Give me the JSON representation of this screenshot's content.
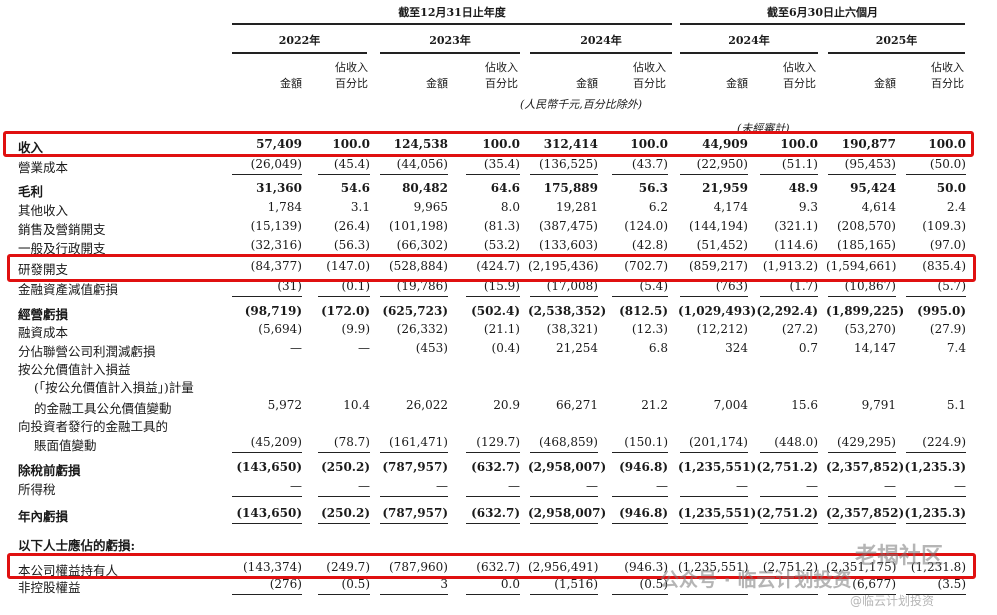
{
  "header": {
    "period_left": "截至12月31日止年度",
    "period_right": "截至6月30日止六個月",
    "years": [
      "2022年",
      "2023年",
      "2024年",
      "2024年",
      "2025年"
    ],
    "amount_label": "金額",
    "pct_label_line1": "佔收入",
    "pct_label_line2": "百分比",
    "unit_note": "(人民幣千元,百分比除外)",
    "unaudited_note": "(未經審計)"
  },
  "section_label": "以下人士應佔的虧損:",
  "rows": [
    {
      "label": "收入",
      "bold": true,
      "vals": [
        "57,409",
        "100.0",
        "124,538",
        "100.0",
        "312,414",
        "100.0",
        "44,909",
        "100.0",
        "190,877",
        "100.0"
      ]
    },
    {
      "label": "營業成本",
      "vals": [
        "(26,049)",
        "(45.4)",
        "(44,056)",
        "(35.4)",
        "(136,525)",
        "(43.7)",
        "(22,950)",
        "(51.1)",
        "(95,453)",
        "(50.0)"
      ]
    },
    {
      "label": "毛利",
      "bold": true,
      "vals": [
        "31,360",
        "54.6",
        "80,482",
        "64.6",
        "175,889",
        "56.3",
        "21,959",
        "48.9",
        "95,424",
        "50.0"
      ]
    },
    {
      "label": "其他收入",
      "vals": [
        "1,784",
        "3.1",
        "9,965",
        "8.0",
        "19,281",
        "6.2",
        "4,174",
        "9.3",
        "4,614",
        "2.4"
      ]
    },
    {
      "label": "銷售及營銷開支",
      "vals": [
        "(15,139)",
        "(26.4)",
        "(101,198)",
        "(81.3)",
        "(387,475)",
        "(124.0)",
        "(144,194)",
        "(321.1)",
        "(208,570)",
        "(109.3)"
      ]
    },
    {
      "label": "一般及行政開支",
      "vals": [
        "(32,316)",
        "(56.3)",
        "(66,302)",
        "(53.2)",
        "(133,603)",
        "(42.8)",
        "(51,452)",
        "(114.6)",
        "(185,165)",
        "(97.0)"
      ]
    },
    {
      "label": "研發開支",
      "vals": [
        "(84,377)",
        "(147.0)",
        "(528,884)",
        "(424.7)",
        "(2,195,436)",
        "(702.7)",
        "(859,217)",
        "(1,913.2)",
        "(1,594,661)",
        "(835.4)"
      ]
    },
    {
      "label": "金融資產減值虧損",
      "vals": [
        "(31)",
        "(0.1)",
        "(19,786)",
        "(15.9)",
        "(17,008)",
        "(5.4)",
        "(763)",
        "(1.7)",
        "(10,867)",
        "(5.7)"
      ]
    },
    {
      "label": "經營虧損",
      "bold": true,
      "vals": [
        "(98,719)",
        "(172.0)",
        "(625,723)",
        "(502.4)",
        "(2,538,352)",
        "(812.5)",
        "(1,029,493)",
        "(2,292.4)",
        "(1,899,225)",
        "(995.0)"
      ]
    },
    {
      "label": "融資成本",
      "vals": [
        "(5,694)",
        "(9.9)",
        "(26,332)",
        "(21.1)",
        "(38,321)",
        "(12.3)",
        "(12,212)",
        "(27.2)",
        "(53,270)",
        "(27.9)"
      ]
    },
    {
      "label": "分佔聯營公司利潤減虧損",
      "vals": [
        "—",
        "—",
        "(453)",
        "(0.4)",
        "21,254",
        "6.8",
        "324",
        "0.7",
        "14,147",
        "7.4"
      ]
    },
    {
      "label": "按公允價值計入損益",
      "vals": [
        "",
        "",
        "",
        "",
        "",
        "",
        "",
        "",
        "",
        ""
      ]
    },
    {
      "label": "(「按公允價值計入損益」)計量",
      "indent": true,
      "vals": [
        "",
        "",
        "",
        "",
        "",
        "",
        "",
        "",
        "",
        ""
      ]
    },
    {
      "label": "的金融工具公允價值變動",
      "indent": true,
      "vals": [
        "5,972",
        "10.4",
        "26,022",
        "20.9",
        "66,271",
        "21.2",
        "7,004",
        "15.6",
        "9,791",
        "5.1"
      ]
    },
    {
      "label": "向投資者發行的金融工具的",
      "vals": [
        "",
        "",
        "",
        "",
        "",
        "",
        "",
        "",
        "",
        ""
      ]
    },
    {
      "label": "賬面值變動",
      "indent": true,
      "vals": [
        "(45,209)",
        "(78.7)",
        "(161,471)",
        "(129.7)",
        "(468,859)",
        "(150.1)",
        "(201,174)",
        "(448.0)",
        "(429,295)",
        "(224.9)"
      ]
    },
    {
      "label": "除稅前虧損",
      "bold": true,
      "vals": [
        "(143,650)",
        "(250.2)",
        "(787,957)",
        "(632.7)",
        "(2,958,007)",
        "(946.8)",
        "(1,235,551)",
        "(2,751.2)",
        "(2,357,852)",
        "(1,235.3)"
      ]
    },
    {
      "label": "所得稅",
      "vals": [
        "—",
        "—",
        "—",
        "—",
        "—",
        "—",
        "—",
        "—",
        "—",
        "—"
      ]
    },
    {
      "label": "年內虧損",
      "bold": true,
      "vals": [
        "(143,650)",
        "(250.2)",
        "(787,957)",
        "(632.7)",
        "(2,958,007)",
        "(946.8)",
        "(1,235,551)",
        "(2,751.2)",
        "(2,357,852)",
        "(1,235.3)"
      ]
    },
    {
      "label": "本公司權益持有人",
      "vals": [
        "(143,374)",
        "(249.7)",
        "(787,960)",
        "(632.7)",
        "(2,956,491)",
        "(946.3)",
        "(1,235,551)",
        "(2,751.2)",
        "(2,351,175)",
        "(1,231.8)"
      ]
    },
    {
      "label": "非控股權益",
      "vals": [
        "(276)",
        "(0.5)",
        "3",
        "0.0",
        "(1,516)",
        "(0.5)",
        "",
        "",
        "(6,677)",
        "(3.5)"
      ]
    }
  ],
  "watermark": {
    "brand": "老揭社区",
    "line": "公众号 · 临云计划投资",
    "sub": "@临云计划投资"
  }
}
